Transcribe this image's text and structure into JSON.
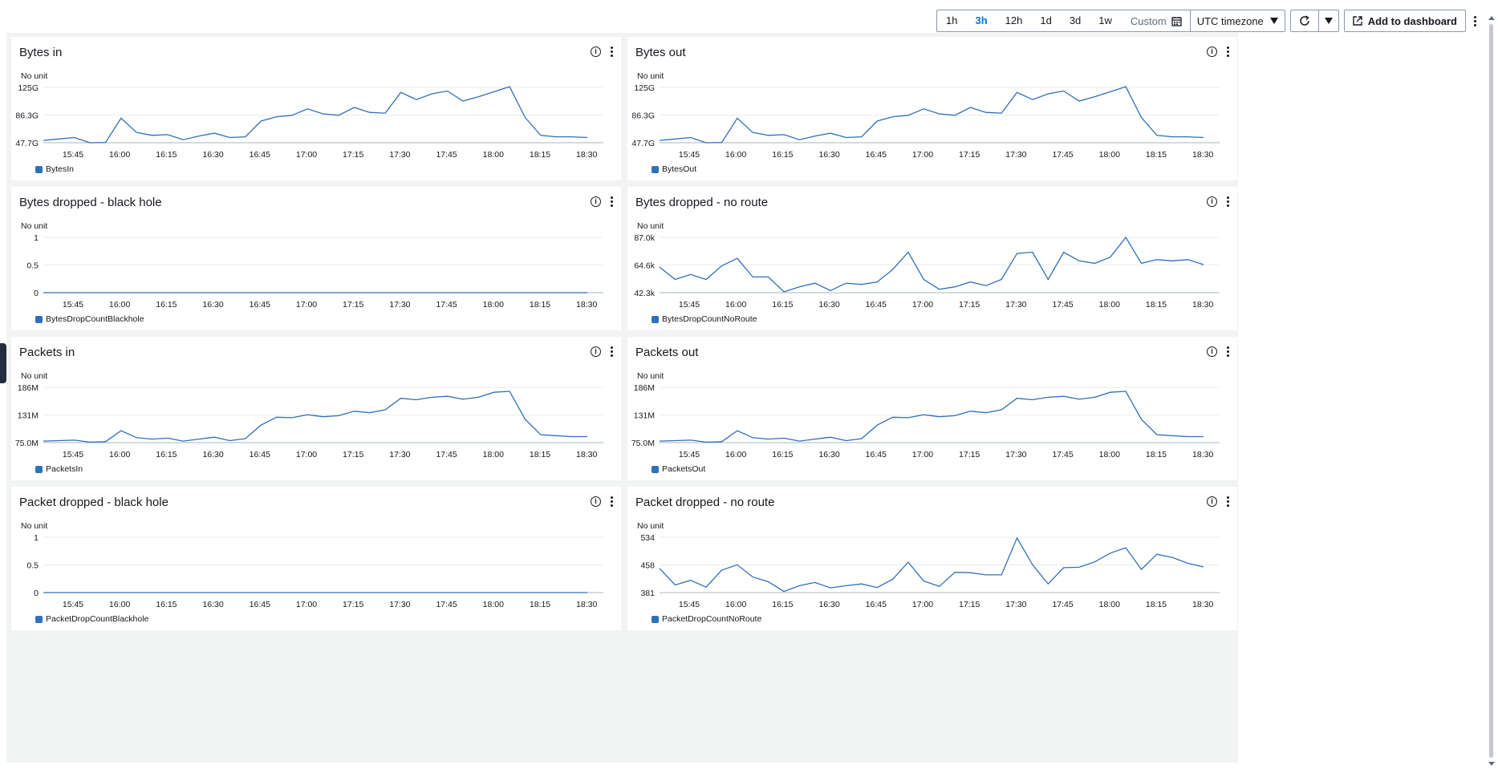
{
  "toolbar": {
    "ranges": [
      "1h",
      "3h",
      "12h",
      "1d",
      "3d",
      "1w"
    ],
    "active_range": "3h",
    "custom_label": "Custom",
    "timezone_label": "UTC timezone",
    "add_label": "Add to dashboard"
  },
  "x_ticks": [
    "15:45",
    "16:00",
    "16:15",
    "16:30",
    "16:45",
    "17:00",
    "17:15",
    "17:30",
    "17:45",
    "18:00",
    "18:15",
    "18:30"
  ],
  "line_color": "#2f70b9",
  "panels": [
    {
      "title": "Bytes in",
      "unit": "No unit",
      "legend": "BytesIn",
      "chart_data": {
        "type": "line",
        "xlabel": "",
        "ylabel": "No unit",
        "y_ticks": [
          "125G",
          "86.3G",
          "47.7G"
        ],
        "ylim": [
          47.7,
          125
        ],
        "series": [
          {
            "name": "BytesIn",
            "values": [
              51,
              53,
              55,
              47,
              48,
              82,
              62,
              58,
              59,
              52,
              57,
              61,
              55,
              56,
              78,
              84,
              86,
              95,
              88,
              86,
              97,
              90,
              89,
              118,
              108,
              116,
              120,
              106,
              112,
              119,
              126,
              83,
              58,
              56,
              56,
              55
            ]
          }
        ]
      }
    },
    {
      "title": "Bytes out",
      "unit": "No unit",
      "legend": "BytesOut",
      "chart_data": {
        "type": "line",
        "xlabel": "",
        "ylabel": "No unit",
        "y_ticks": [
          "125G",
          "86.3G",
          "47.7G"
        ],
        "ylim": [
          47.7,
          125
        ],
        "series": [
          {
            "name": "BytesOut",
            "values": [
              51,
              53,
              55,
              47,
              48,
              82,
              62,
              58,
              59,
              52,
              57,
              61,
              55,
              56,
              78,
              84,
              86,
              95,
              88,
              86,
              97,
              90,
              89,
              118,
              108,
              116,
              120,
              106,
              112,
              119,
              126,
              83,
              58,
              56,
              56,
              55
            ]
          }
        ]
      }
    },
    {
      "title": "Bytes dropped - black hole",
      "unit": "No unit",
      "legend": "BytesDropCountBlackhole",
      "chart_data": {
        "type": "line",
        "xlabel": "",
        "ylabel": "No unit",
        "y_ticks": [
          "1",
          "0.5",
          "0"
        ],
        "ylim": [
          0,
          1
        ],
        "series": [
          {
            "name": "BytesDropCountBlackhole",
            "values": [
              0,
              0,
              0,
              0,
              0,
              0,
              0,
              0,
              0,
              0,
              0,
              0,
              0,
              0,
              0,
              0,
              0,
              0,
              0,
              0,
              0,
              0,
              0,
              0,
              0,
              0,
              0,
              0,
              0,
              0,
              0,
              0,
              0,
              0,
              0,
              0
            ]
          }
        ]
      }
    },
    {
      "title": "Bytes dropped - no route",
      "unit": "No unit",
      "legend": "BytesDropCountNoRoute",
      "chart_data": {
        "type": "line",
        "xlabel": "",
        "ylabel": "No unit",
        "y_ticks": [
          "87.0k",
          "64.6k",
          "42.3k"
        ],
        "ylim": [
          42.3,
          87.0
        ],
        "series": [
          {
            "name": "BytesDropCountNoRoute",
            "values": [
              63,
              53,
              57,
              53,
              64,
              70,
              55,
              55,
              43,
              47,
              50,
              44,
              50,
              49,
              51,
              61,
              75,
              53,
              45,
              47,
              51,
              48,
              53,
              74,
              75,
              53,
              75,
              68,
              66,
              71,
              87,
              66,
              69,
              68,
              69,
              65
            ]
          }
        ]
      }
    },
    {
      "title": "Packets in",
      "unit": "No unit",
      "legend": "PacketsIn",
      "chart_data": {
        "type": "line",
        "xlabel": "",
        "ylabel": "No unit",
        "y_ticks": [
          "186M",
          "131M",
          "75.0M"
        ],
        "ylim": [
          75.0,
          186
        ],
        "series": [
          {
            "name": "PacketsIn",
            "values": [
              78,
              79,
              80,
              76,
              77,
              99,
              85,
              82,
              84,
              78,
              82,
              86,
              79,
              83,
              110,
              126,
              125,
              131,
              127,
              129,
              138,
              135,
              141,
              164,
              161,
              166,
              168,
              162,
              166,
              176,
              178,
              122,
              91,
              89,
              87,
              87
            ]
          }
        ]
      }
    },
    {
      "title": "Packets out",
      "unit": "No unit",
      "legend": "PacketsOut",
      "chart_data": {
        "type": "line",
        "xlabel": "",
        "ylabel": "No unit",
        "y_ticks": [
          "186M",
          "131M",
          "75.0M"
        ],
        "ylim": [
          75.0,
          186
        ],
        "series": [
          {
            "name": "PacketsOut",
            "values": [
              78,
              79,
              80,
              76,
              77,
              99,
              85,
              82,
              84,
              78,
              82,
              86,
              79,
              83,
              110,
              126,
              125,
              131,
              127,
              129,
              138,
              135,
              141,
              164,
              161,
              166,
              168,
              162,
              166,
              176,
              178,
              122,
              91,
              89,
              87,
              87
            ]
          }
        ]
      }
    },
    {
      "title": "Packet dropped - black hole",
      "unit": "No unit",
      "legend": "PacketDropCountBlackhole",
      "chart_data": {
        "type": "line",
        "xlabel": "",
        "ylabel": "No unit",
        "y_ticks": [
          "1",
          "0.5",
          "0"
        ],
        "ylim": [
          0,
          1
        ],
        "series": [
          {
            "name": "PacketDropCountBlackhole",
            "values": [
              0,
              0,
              0,
              0,
              0,
              0,
              0,
              0,
              0,
              0,
              0,
              0,
              0,
              0,
              0,
              0,
              0,
              0,
              0,
              0,
              0,
              0,
              0,
              0,
              0,
              0,
              0,
              0,
              0,
              0,
              0,
              0,
              0,
              0,
              0,
              0
            ]
          }
        ]
      }
    },
    {
      "title": "Packet dropped - no route",
      "unit": "No unit",
      "legend": "PacketDropCountNoRoute",
      "chart_data": {
        "type": "line",
        "xlabel": "",
        "ylabel": "No unit",
        "y_ticks": [
          "534",
          "458",
          "381"
        ],
        "ylim": [
          381,
          534
        ],
        "series": [
          {
            "name": "PacketDropCountNoRoute",
            "values": [
              448,
              402,
              415,
              396,
              443,
              458,
              424,
              411,
              384,
              400,
              409,
              394,
              400,
              405,
              395,
              418,
              465,
              413,
              398,
              437,
              436,
              430,
              430,
              532,
              458,
              405,
              450,
              451,
              466,
              490,
              505,
              445,
              487,
              478,
              462,
              452
            ]
          }
        ]
      }
    }
  ]
}
